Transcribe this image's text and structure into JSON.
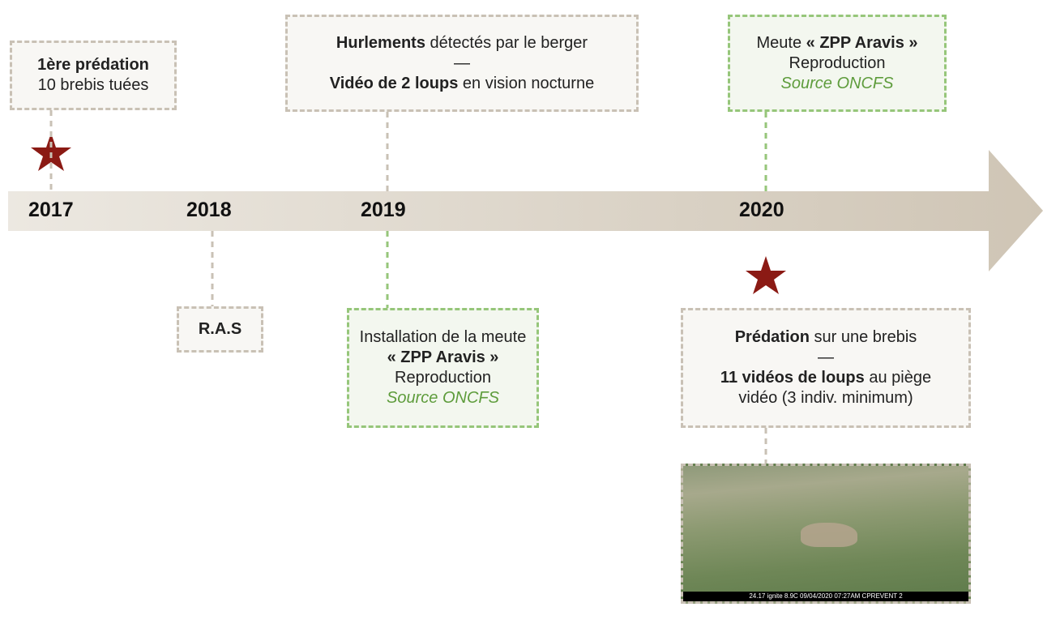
{
  "years": [
    "2017",
    "2018",
    "2019",
    "2020"
  ],
  "boxes": [
    {
      "border": "#c9c1b5",
      "fill": "#f8f7f4",
      "lines": [
        [
          {
            "text": "1ère prédation",
            "style": "bold"
          }
        ],
        [
          {
            "text": "10 brebis tuées",
            "style": "normal"
          }
        ]
      ]
    },
    {
      "border": "#c9c1b5",
      "fill": "#f8f7f4",
      "lines": [
        [
          {
            "text": "R.A.S",
            "style": "bold"
          }
        ]
      ]
    },
    {
      "border": "#c9c1b5",
      "fill": "#f8f7f4",
      "lines": [
        [
          {
            "text": "Hurlements",
            "style": "bold"
          },
          {
            "text": " détectés par le berger",
            "style": "normal"
          }
        ],
        [
          {
            "text": "—",
            "style": "normal"
          }
        ],
        [
          {
            "text": "Vidéo de 2 loups",
            "style": "bold"
          },
          {
            "text": " en vision nocturne",
            "style": "normal"
          }
        ]
      ]
    },
    {
      "border": "#96c67a",
      "fill": "#f3f7ef",
      "lines": [
        [
          {
            "text": "Installation de la meute",
            "style": "normal"
          }
        ],
        [
          {
            "text": "« ZPP Aravis »",
            "style": "bold"
          }
        ],
        [
          {
            "text": "Reproduction",
            "style": "normal"
          }
        ],
        [
          {
            "text": "Source ONCFS",
            "style": "source"
          }
        ]
      ]
    },
    {
      "border": "#96c67a",
      "fill": "#f3f7ef",
      "lines": [
        [
          {
            "text": "Meute ",
            "style": "normal"
          },
          {
            "text": "« ZPP Aravis »",
            "style": "bold"
          }
        ],
        [
          {
            "text": "Reproduction",
            "style": "normal"
          }
        ],
        [
          {
            "text": "Source ONCFS",
            "style": "source"
          }
        ]
      ]
    },
    {
      "border": "#c9c1b5",
      "fill": "#f8f7f4",
      "lines": [
        [
          {
            "text": "Prédation",
            "style": "bold"
          },
          {
            "text": " sur une brebis",
            "style": "normal"
          }
        ],
        [
          {
            "text": "—",
            "style": "normal"
          }
        ],
        [
          {
            "text": "11 vidéos de loups",
            "style": "bold"
          },
          {
            "text": " au piège",
            "style": "normal"
          }
        ],
        [
          {
            "text": "vidéo (3 indiv. minimum)",
            "style": "normal"
          }
        ]
      ]
    }
  ],
  "photo_stamp": "24.17 ignite  8.9C  09/04/2020  07:27AM  CPREVENT 2"
}
